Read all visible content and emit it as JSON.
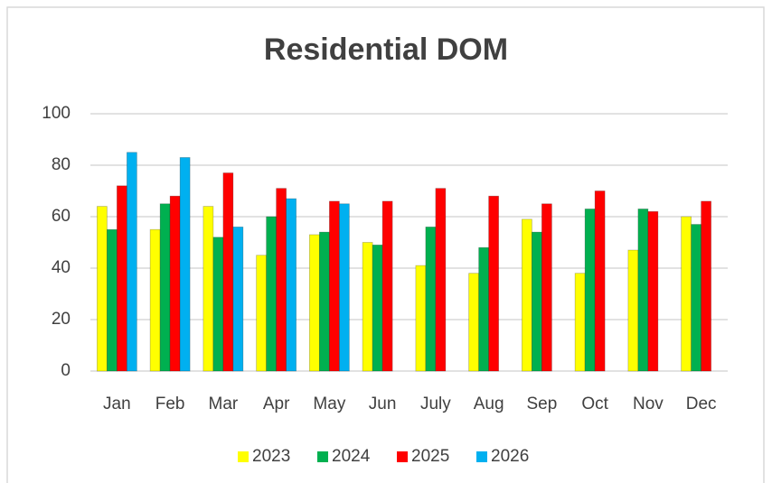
{
  "chart_data": {
    "type": "bar",
    "title": "Residential DOM",
    "categories": [
      "Jan",
      "Feb",
      "Mar",
      "Apr",
      "May",
      "Jun",
      "July",
      "Aug",
      "Sep",
      "Oct",
      "Nov",
      "Dec"
    ],
    "series": [
      {
        "name": "2023",
        "color": "#ffff00",
        "values": [
          64,
          55,
          64,
          45,
          53,
          50,
          41,
          38,
          59,
          38,
          47,
          60
        ]
      },
      {
        "name": "2024",
        "color": "#00b050",
        "values": [
          55,
          65,
          52,
          60,
          54,
          49,
          56,
          48,
          54,
          63,
          63,
          57
        ]
      },
      {
        "name": "2025",
        "color": "#ff0000",
        "values": [
          72,
          68,
          77,
          71,
          66,
          66,
          71,
          68,
          65,
          70,
          62,
          66
        ]
      },
      {
        "name": "2026",
        "color": "#00b0f0",
        "values": [
          85,
          83,
          56,
          67,
          65,
          null,
          null,
          null,
          null,
          null,
          null,
          null
        ]
      }
    ],
    "ylim": [
      0,
      100
    ],
    "yticks": [
      0,
      20,
      40,
      60,
      80,
      100
    ],
    "grid": true,
    "legend": "bottom"
  }
}
